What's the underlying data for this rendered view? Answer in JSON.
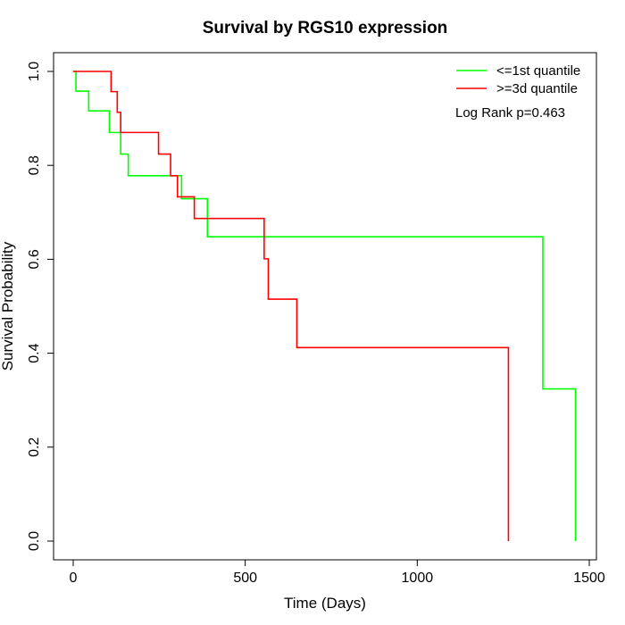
{
  "chart_data": {
    "type": "line",
    "subtype": "kaplan-meier step",
    "title": "Survival by RGS10 expression",
    "xlabel": "Time (Days)",
    "ylabel": "Survival Probability",
    "xlim": [
      0,
      1500
    ],
    "ylim": [
      0,
      1
    ],
    "x_ticks": [
      0,
      500,
      1000,
      1500
    ],
    "x_tick_labels": [
      "0",
      "500",
      "1000",
      "1500"
    ],
    "y_ticks": [
      0,
      0.2,
      0.4,
      0.6,
      0.8,
      1
    ],
    "y_tick_labels": [
      "0.0",
      "0.2",
      "0.4",
      "0.6",
      "0.8",
      "1.0"
    ],
    "grid": false,
    "legend_position": "top-right",
    "annotation": "Log Rank p=0.463",
    "series": [
      {
        "name": "<=1st quantile",
        "color": "#00ff00",
        "x": [
          0,
          8,
          45,
          105,
          138,
          160,
          315,
          390,
          1365,
          1460
        ],
        "y": [
          1.0,
          0.958,
          0.916,
          0.87,
          0.824,
          0.778,
          0.729,
          0.648,
          0.324,
          0.0
        ]
      },
      {
        "name": ">=3d quantile",
        "color": "#ff0000",
        "x": [
          0,
          110,
          128,
          138,
          248,
          283,
          303,
          352,
          555,
          567,
          650,
          1265
        ],
        "y": [
          1.0,
          0.957,
          0.913,
          0.87,
          0.824,
          0.778,
          0.733,
          0.687,
          0.601,
          0.515,
          0.412,
          0.0
        ]
      }
    ]
  }
}
